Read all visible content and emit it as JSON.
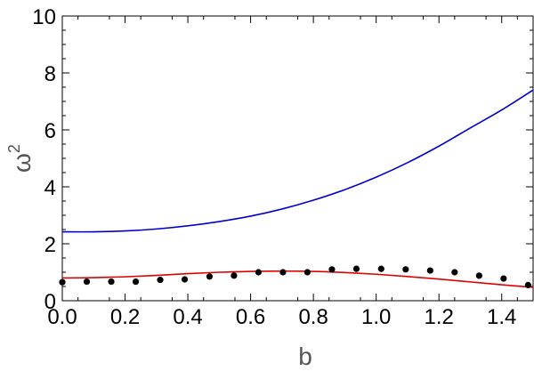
{
  "chart_data": {
    "type": "line",
    "title": "",
    "xlabel": "b",
    "ylabel_base": "ω",
    "ylabel_sup": "2",
    "xlim": [
      0.0,
      1.5
    ],
    "ylim": [
      0,
      10
    ],
    "x_major_ticks": [
      0.0,
      0.2,
      0.4,
      0.6,
      0.8,
      1.0,
      1.2,
      1.4
    ],
    "x_tick_labels": [
      "0.0",
      "0.2",
      "0.4",
      "0.6",
      "0.8",
      "1.0",
      "1.2",
      "1.4"
    ],
    "y_major_ticks": [
      0,
      2,
      4,
      6,
      8,
      10
    ],
    "y_tick_labels": [
      "0",
      "2",
      "4",
      "6",
      "8",
      "10"
    ],
    "grid": false,
    "series": [
      {
        "kind": "line",
        "color": "#0000cc",
        "x": [
          0.0,
          0.1,
          0.2,
          0.3,
          0.4,
          0.5,
          0.6,
          0.7,
          0.8,
          0.9,
          1.0,
          1.1,
          1.2,
          1.3,
          1.4,
          1.5
        ],
        "y": [
          2.42,
          2.42,
          2.45,
          2.52,
          2.63,
          2.78,
          2.97,
          3.22,
          3.53,
          3.9,
          4.34,
          4.85,
          5.43,
          6.07,
          6.7,
          7.4
        ]
      },
      {
        "kind": "line",
        "color": "#dd0000",
        "x": [
          0.0,
          0.1,
          0.2,
          0.3,
          0.4,
          0.5,
          0.6,
          0.7,
          0.8,
          0.9,
          1.0,
          1.1,
          1.2,
          1.3,
          1.4,
          1.5
        ],
        "y": [
          0.8,
          0.81,
          0.84,
          0.89,
          0.95,
          1.0,
          1.03,
          1.04,
          1.03,
          0.99,
          0.93,
          0.85,
          0.76,
          0.66,
          0.56,
          0.47
        ]
      },
      {
        "kind": "scatter",
        "color": "#000000",
        "x": [
          0.0,
          0.078,
          0.156,
          0.234,
          0.312,
          0.39,
          0.469,
          0.547,
          0.625,
          0.703,
          0.781,
          0.859,
          0.937,
          1.016,
          1.094,
          1.172,
          1.25,
          1.328,
          1.406,
          1.484
        ],
        "y": [
          0.65,
          0.67,
          0.67,
          0.67,
          0.73,
          0.75,
          0.85,
          0.88,
          1.0,
          1.0,
          1.0,
          1.1,
          1.12,
          1.12,
          1.1,
          1.06,
          1.0,
          0.88,
          0.78,
          0.55
        ]
      }
    ]
  }
}
